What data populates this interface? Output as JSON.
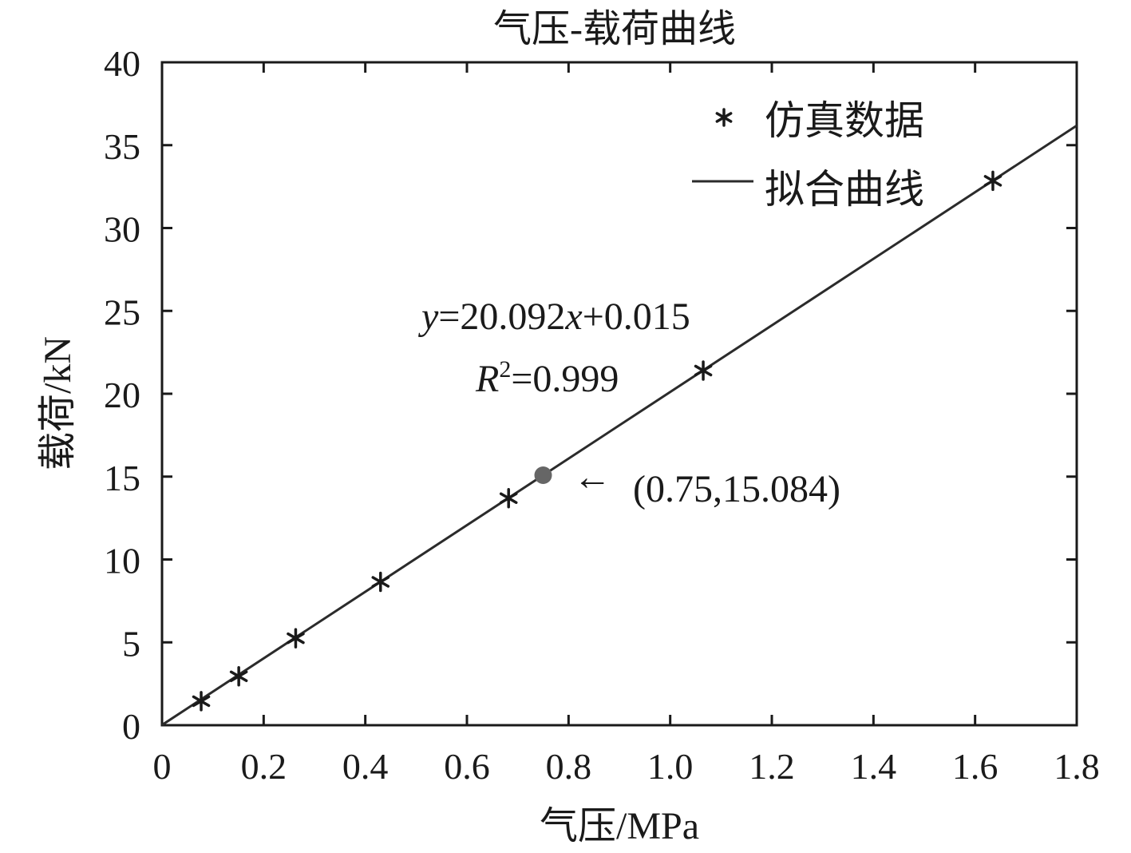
{
  "chart_data": {
    "type": "scatter",
    "title": "气压-载荷曲线",
    "xlabel": "气压/MPa",
    "ylabel": "载荷/kN",
    "xlim": [
      0,
      1.8
    ],
    "ylim": [
      0,
      40
    ],
    "xticks": [
      0,
      0.2,
      0.4,
      0.6,
      0.8,
      1.0,
      1.2,
      1.4,
      1.6,
      1.8
    ],
    "xtick_labels": [
      "0",
      "0.2",
      "0.4",
      "0.6",
      "0.8",
      "1.0",
      "1.2",
      "1.4",
      "1.6",
      "1.8"
    ],
    "yticks": [
      0,
      5,
      10,
      15,
      20,
      25,
      30,
      35,
      40
    ],
    "ytick_labels": [
      "0",
      "5",
      "10",
      "15",
      "20",
      "25",
      "30",
      "35",
      "40"
    ],
    "grid": false,
    "legend_position": "top-right",
    "series": [
      {
        "name": "仿真数据",
        "kind": "scatter",
        "marker": "asterisk",
        "color": "#1a1a1a",
        "x": [
          0.077,
          0.151,
          0.263,
          0.43,
          0.682,
          1.065,
          1.635
        ],
        "y": [
          1.45,
          2.95,
          5.25,
          8.65,
          13.7,
          21.4,
          32.85
        ]
      },
      {
        "name": "拟合曲线",
        "kind": "line",
        "color": "#2b2b2b",
        "slope": 20.092,
        "intercept": 0.015
      }
    ],
    "highlight_point": {
      "x": 0.75,
      "y": 15.084,
      "color": "#666666",
      "label": "(0.75,15.084)",
      "arrow": "←"
    },
    "equation": {
      "y_var": "y",
      "eq_middle": "=20.092",
      "x_var": "x",
      "eq_tail": "+0.015",
      "r_var": "R",
      "r_sup": "2",
      "r_tail": "=0.999"
    }
  }
}
